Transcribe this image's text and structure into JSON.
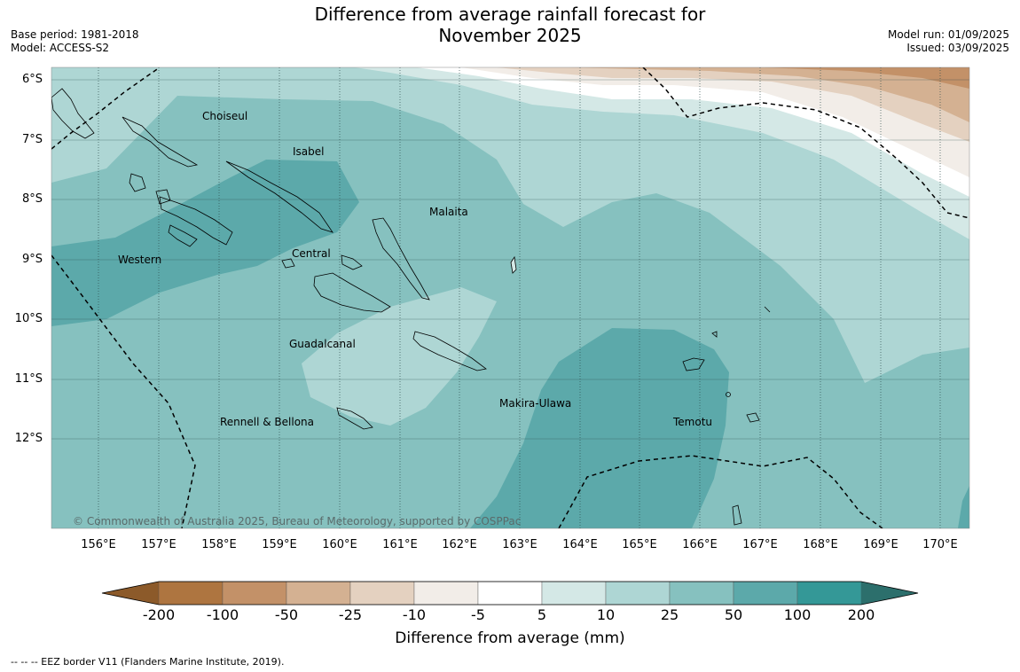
{
  "title_line1": "Difference from average rainfall forecast for",
  "title_line2": "November 2025",
  "meta_left": {
    "base_period": "Base period: 1981-2018",
    "model": "Model: ACCESS-S2"
  },
  "meta_right": {
    "model_run": "Model run: 01/09/2025",
    "issued": "Issued: 03/09/2025"
  },
  "lat_labels": [
    "6°S",
    "7°S",
    "8°S",
    "9°S",
    "10°S",
    "11°S",
    "12°S"
  ],
  "lon_labels": [
    "156°E",
    "157°E",
    "158°E",
    "159°E",
    "160°E",
    "161°E",
    "162°E",
    "163°E",
    "164°E",
    "165°E",
    "166°E",
    "167°E",
    "168°E",
    "169°E",
    "170°E"
  ],
  "regions": {
    "choiseul": "Choiseul",
    "isabel": "Isabel",
    "malaita": "Malaita",
    "western": "Western",
    "central": "Central",
    "guadalcanal": "Guadalcanal",
    "makira": "Makira-Ulawa",
    "temotu": "Temotu",
    "rennell": "Rennell & Bellona"
  },
  "copyright": "© Commonwealth of Australia 2025, Bureau of Meteorology, supported by COSPPac",
  "colorbar": {
    "title": "Difference from average (mm)",
    "ticks": [
      "-200",
      "-100",
      "-50",
      "-25",
      "-10",
      "-5",
      "5",
      "10",
      "25",
      "50",
      "100",
      "200"
    ],
    "colors": [
      "#8c5a2a",
      "#ae7540",
      "#c39168",
      "#d4b192",
      "#e4d1c0",
      "#f2ede8",
      "#ffffff",
      "#d4e8e6",
      "#aed6d4",
      "#86c1bf",
      "#5ca9aa",
      "#349897",
      "#2c6f6c"
    ]
  },
  "footer": "--  --  -- EEZ border V11 (Flanders Marine Institute, 2019)."
}
